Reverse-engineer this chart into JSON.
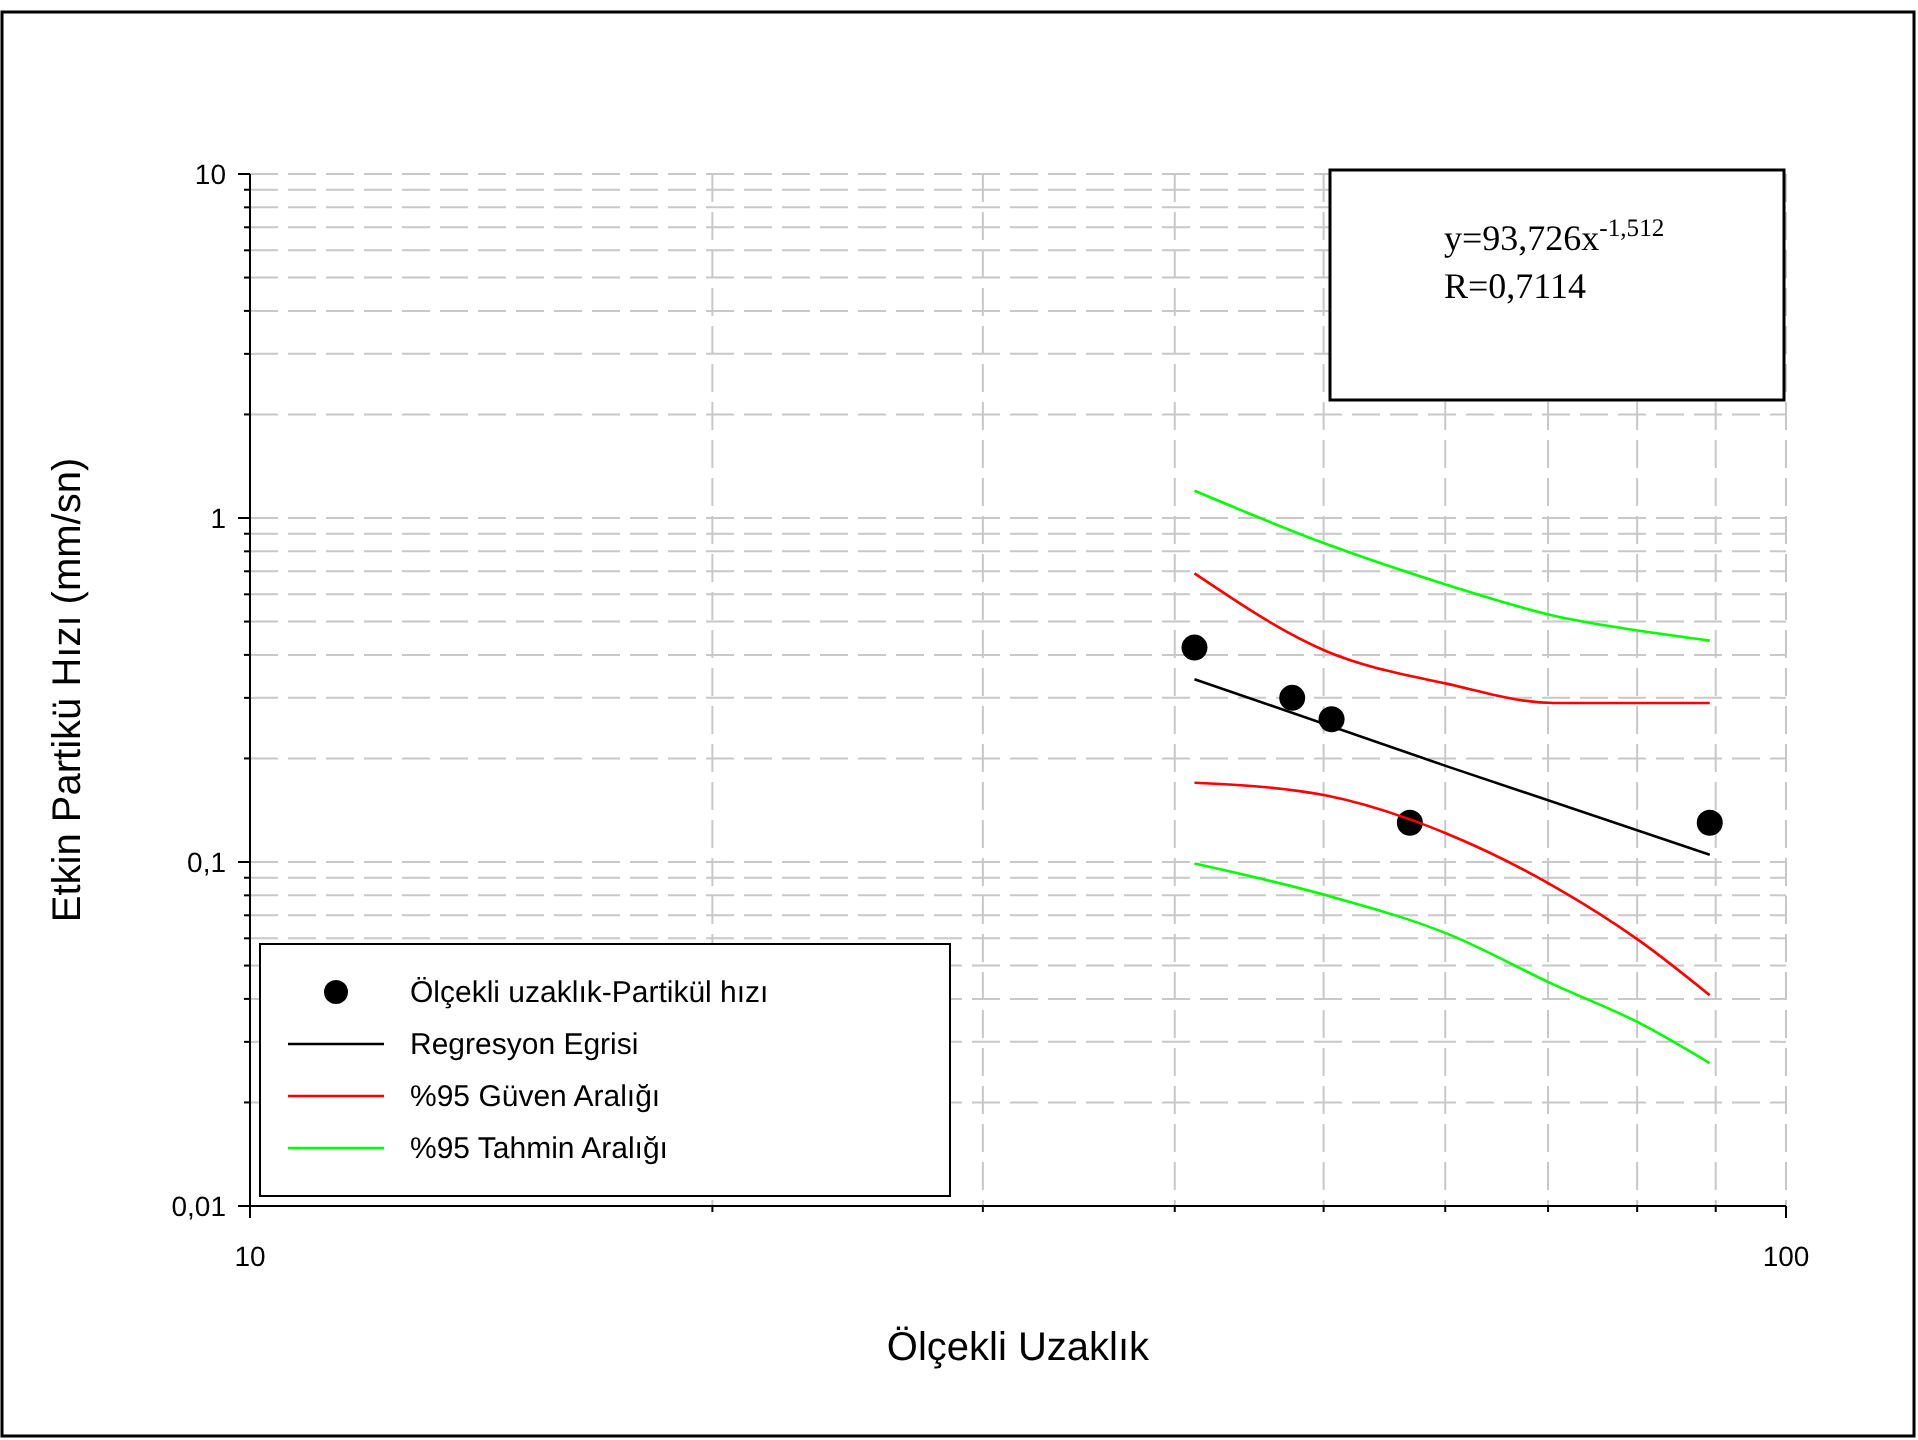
{
  "chart_data": {
    "type": "scatter",
    "xlabel": "Ölçekli Uzaklık",
    "ylabel": "Etkin Partikü Hızı (mm/sn)",
    "log": "xy",
    "grid": true,
    "legend": "bottom left",
    "xlim": [
      10,
      100
    ],
    "ylim": [
      0.01,
      10
    ],
    "xticks": [
      10,
      {
        "value": 20,
        "label": null
      },
      {
        "value": 30,
        "label": null
      },
      {
        "value": 40,
        "label": null
      },
      {
        "value": 50,
        "label": null
      },
      {
        "value": 60,
        "label": null
      },
      {
        "value": 70,
        "label": null
      },
      {
        "value": 80,
        "label": null
      },
      {
        "value": 90,
        "label": null
      },
      100
    ],
    "yticks": [
      {
        "value": 0.01,
        "label": "0,01"
      },
      {
        "value": 0.02,
        "label": null
      },
      {
        "value": 0.03,
        "label": null
      },
      {
        "value": 0.04,
        "label": null
      },
      {
        "value": 0.05,
        "label": null
      },
      {
        "value": 0.06,
        "label": null
      },
      {
        "value": 0.07,
        "label": null
      },
      {
        "value": 0.08,
        "label": null
      },
      {
        "value": 0.09,
        "label": null
      },
      {
        "value": 0.1,
        "label": "0,1"
      },
      {
        "value": 0.2,
        "label": null
      },
      {
        "value": 0.3,
        "label": null
      },
      {
        "value": 0.4,
        "label": null
      },
      {
        "value": 0.5,
        "label": null
      },
      {
        "value": 0.6,
        "label": null
      },
      {
        "value": 0.7,
        "label": null
      },
      {
        "value": 0.8,
        "label": null
      },
      {
        "value": 0.9,
        "label": null
      },
      1,
      {
        "value": 2,
        "label": null
      },
      {
        "value": 3,
        "label": null
      },
      {
        "value": 4,
        "label": null
      },
      {
        "value": 5,
        "label": null
      },
      {
        "value": 6,
        "label": null
      },
      {
        "value": 7,
        "label": null
      },
      {
        "value": 8,
        "label": null
      },
      {
        "value": 9,
        "label": null
      },
      10
    ],
    "annotations": [
      "y=93,726x$^{-1,512}$",
      "R=0,7114"
    ],
    "series": [
      {
        "name": "Ölçekli uzaklık-Partikül hızı",
        "marker": "circle",
        "color": "#000000",
        "x": [
          41.2,
          47.7,
          50.6,
          56.9,
          89.2
        ],
        "values": [
          0.42,
          0.3,
          0.26,
          0.13,
          0.13
        ]
      },
      {
        "name": "Regresyon Egrisi",
        "type": "line",
        "color": "#000000",
        "x": [
          41.2,
          60.1,
          89.2
        ],
        "values": [
          0.34,
          0.19,
          0.105
        ]
      },
      {
        "name": "%95 Güven Aralığı",
        "type": "line",
        "color": "#ff0000",
        "x": [
          41.2,
          50.2,
          60.1,
          70.6,
          89.2
        ],
        "values": [
          0.69,
          0.41,
          0.33,
          0.29,
          0.29
        ]
      },
      {
        "type": "line",
        "color": "#ff0000",
        "x": [
          41.2,
          50.2,
          56.9,
          60.1,
          70.6,
          80.3,
          89.2
        ],
        "values": [
          0.17,
          0.156,
          0.133,
          0.121,
          0.085,
          0.059,
          0.041
        ]
      },
      {
        "name": "%95 Tahmin Aralığı",
        "type": "line",
        "color": "#00ff00",
        "x": [
          41.2,
          50.2,
          60.1,
          70.6,
          80.3,
          89.2
        ],
        "values": [
          1.2,
          0.84,
          0.64,
          0.52,
          0.47,
          0.44
        ]
      },
      {
        "type": "line",
        "color": "#00ff00",
        "x": [
          41.2,
          50.2,
          60.1,
          70.6,
          80.3,
          89.2
        ],
        "values": [
          0.099,
          0.08,
          0.062,
          0.044,
          0.034,
          0.026
        ]
      }
    ]
  }
}
